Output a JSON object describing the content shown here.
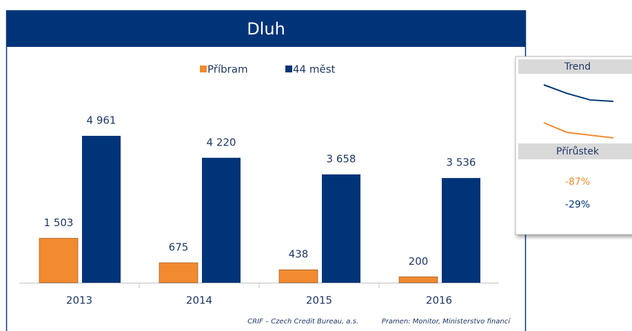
{
  "chart_data": {
    "type": "bar",
    "title": "Dluh",
    "categories": [
      "2013",
      "2014",
      "2015",
      "2016"
    ],
    "series": [
      {
        "name": "Příbram",
        "color": "#f28a30",
        "values": [
          1503,
          675,
          438,
          200
        ],
        "value_labels": [
          "1 503",
          "675",
          "438",
          "200"
        ]
      },
      {
        "name": "44 měst",
        "color": "#003478",
        "values": [
          4961,
          4220,
          3658,
          3536
        ],
        "value_labels": [
          "4 961",
          "4 220",
          "3 658",
          "3 536"
        ]
      }
    ],
    "ylim": [
      0,
      5000
    ],
    "source": "CRIF – Czech Credit Bureau, a.s.",
    "note": "Pramen: Monitor, Ministerstvo financí"
  },
  "trend_panel": {
    "title": "Trend",
    "change_title": "Přírůstek",
    "changes": [
      "-87%",
      "-29%"
    ]
  }
}
